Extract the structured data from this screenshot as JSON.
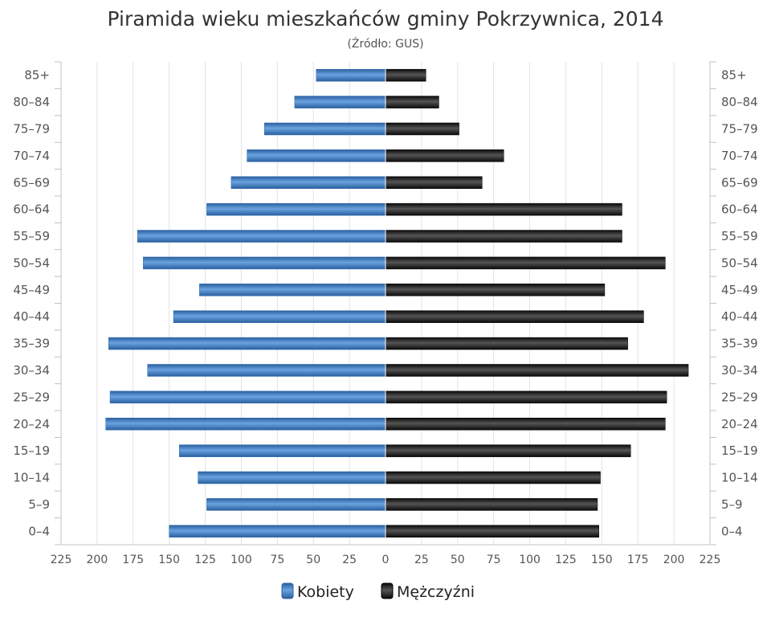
{
  "colors": {
    "female": "#3d7ac4",
    "male": "#222222",
    "grid": "#e2e2e2",
    "axis": "#c0c0c0"
  },
  "chart_data": {
    "type": "bar",
    "orientation": "horizontal-pyramid",
    "title": "Piramida wieku mieszkańców gminy Pokrzywnica, 2014",
    "subtitle": "(Źródło: GUS)",
    "categories": [
      "0–4",
      "5–9",
      "10–14",
      "15–19",
      "20–24",
      "25–29",
      "30–34",
      "35–39",
      "40–44",
      "45–49",
      "50–54",
      "55–59",
      "60–64",
      "65–69",
      "70–74",
      "75–79",
      "80–84",
      "85+"
    ],
    "series": [
      {
        "name": "Kobiety",
        "values": [
          150,
          124,
          130,
          143,
          194,
          191,
          165,
          192,
          147,
          129,
          168,
          172,
          124,
          107,
          96,
          84,
          63,
          48
        ]
      },
      {
        "name": "Mężczyźni",
        "values": [
          148,
          147,
          149,
          170,
          194,
          195,
          210,
          168,
          179,
          152,
          194,
          164,
          164,
          67,
          82,
          51,
          37,
          28
        ]
      }
    ],
    "xlim": [
      -225,
      225
    ],
    "x_ticks": [
      "225",
      "200",
      "175",
      "150",
      "125",
      "100",
      "75",
      "50",
      "25",
      "0",
      "25",
      "50",
      "75",
      "100",
      "125",
      "150",
      "175",
      "200",
      "225"
    ],
    "grid": true,
    "legend_position": "bottom-center"
  }
}
